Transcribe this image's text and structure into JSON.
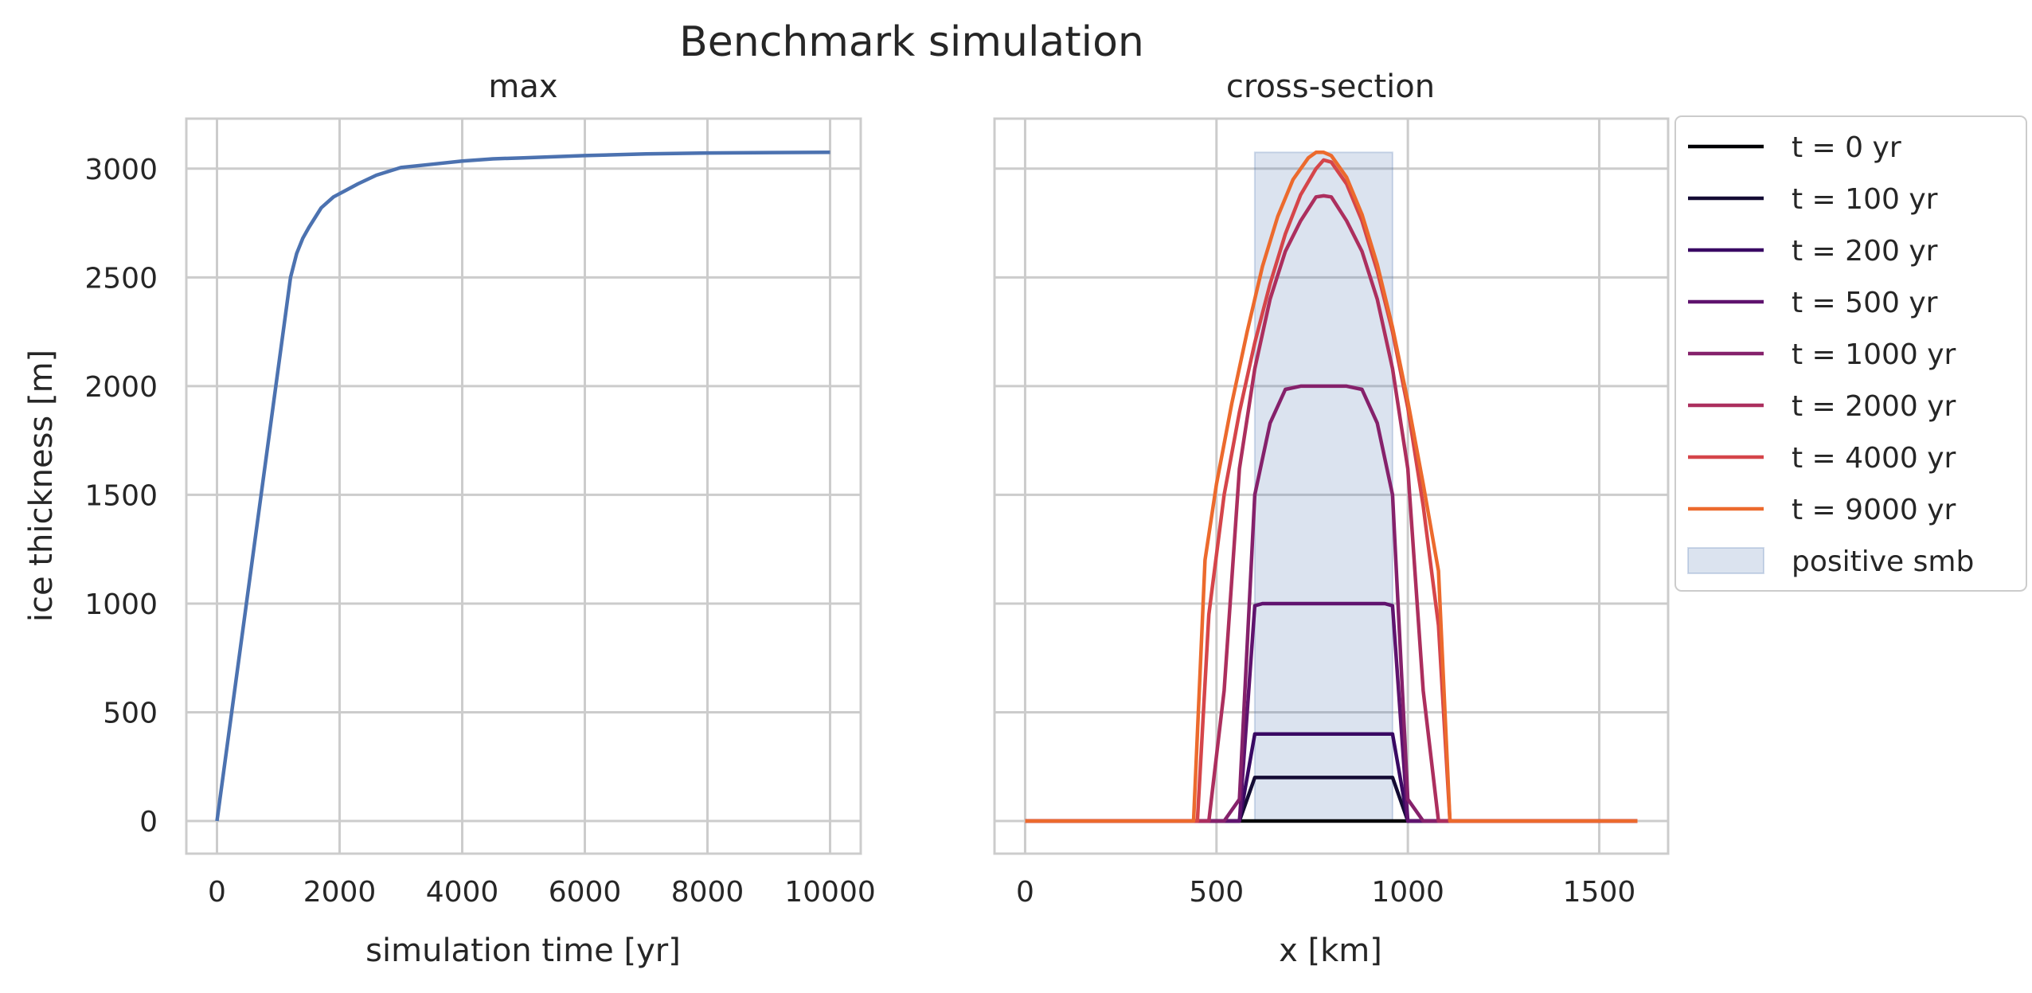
{
  "figure": {
    "title": "Benchmark simulation"
  },
  "chart_data": [
    {
      "type": "line",
      "title": "max",
      "xlabel": "simulation time [yr]",
      "ylabel": "ice thickness [m]",
      "xlim": [
        -500,
        10500
      ],
      "ylim": [
        -150,
        3230
      ],
      "xticks": [
        0,
        2000,
        4000,
        6000,
        8000,
        10000
      ],
      "yticks": [
        0,
        500,
        1000,
        1500,
        2000,
        2500,
        3000
      ],
      "grid": true,
      "series": [
        {
          "color": "#4c72b0",
          "x": [
            0,
            1200,
            1300,
            1400,
            1500,
            1700,
            1900,
            2100,
            2300,
            2600,
            3000,
            3500,
            4000,
            4500,
            5000,
            6000,
            7000,
            8000,
            9000,
            10000
          ],
          "y": [
            0,
            2500,
            2610,
            2680,
            2730,
            2820,
            2870,
            2900,
            2930,
            2970,
            3005,
            3020,
            3035,
            3045,
            3050,
            3060,
            3068,
            3072,
            3074,
            3075
          ]
        }
      ]
    },
    {
      "type": "line",
      "title": "cross-section",
      "xlabel": "x [km]",
      "ylabel": "",
      "xlim": [
        -80,
        1680
      ],
      "ylim": [
        -150,
        3230
      ],
      "xticks": [
        0,
        500,
        1000,
        1500
      ],
      "yticks": [
        0,
        500,
        1000,
        1500,
        2000,
        2500,
        3000
      ],
      "grid": true,
      "legend_placement": "outside upper right",
      "shaded_region": {
        "name": "positive smb",
        "x": [
          600,
          960
        ],
        "y": [
          0,
          3075
        ],
        "color": "#4c72b0"
      },
      "series": [
        {
          "name": "t = 0 yr",
          "color": "#000004",
          "x": [
            0,
            1600
          ],
          "y": [
            0,
            0
          ]
        },
        {
          "name": "t = 100 yr",
          "color": "#140b34",
          "x": [
            0,
            560,
            600,
            640,
            960,
            1000,
            1600
          ],
          "y": [
            0,
            0,
            200,
            200,
            200,
            0,
            0
          ]
        },
        {
          "name": "t = 200 yr",
          "color": "#390963",
          "x": [
            0,
            560,
            600,
            640,
            960,
            1000,
            1600
          ],
          "y": [
            0,
            0,
            400,
            400,
            400,
            0,
            0
          ]
        },
        {
          "name": "t = 500 yr",
          "color": "#5f136e",
          "x": [
            0,
            560,
            600,
            620,
            680,
            720,
            800,
            880,
            940,
            960,
            1000,
            1600
          ],
          "y": [
            0,
            0,
            990,
            1000,
            1000,
            1000,
            1000,
            1000,
            1000,
            990,
            0,
            0
          ]
        },
        {
          "name": "t = 1000 yr",
          "color": "#85216b",
          "x": [
            0,
            520,
            560,
            600,
            640,
            680,
            720,
            760,
            800,
            840,
            880,
            920,
            960,
            1000,
            1040,
            1600
          ],
          "y": [
            0,
            0,
            100,
            1500,
            1830,
            1985,
            2000,
            2000,
            2000,
            2000,
            1985,
            1830,
            1500,
            100,
            0,
            0
          ]
        },
        {
          "name": "t = 2000 yr",
          "color": "#ac2f5e",
          "x": [
            0,
            480,
            520,
            560,
            600,
            640,
            680,
            720,
            760,
            780,
            800,
            840,
            880,
            920,
            960,
            1000,
            1040,
            1080,
            1600
          ],
          "y": [
            0,
            0,
            600,
            1620,
            2080,
            2400,
            2620,
            2760,
            2870,
            2875,
            2870,
            2760,
            2620,
            2400,
            2080,
            1620,
            600,
            0,
            0
          ]
        },
        {
          "name": "t = 4000 yr",
          "color": "#d5454a",
          "x": [
            0,
            450,
            480,
            520,
            560,
            600,
            640,
            680,
            720,
            760,
            780,
            800,
            840,
            880,
            920,
            960,
            1000,
            1040,
            1080,
            1110,
            1600
          ],
          "y": [
            0,
            0,
            950,
            1500,
            1880,
            2200,
            2470,
            2700,
            2880,
            3000,
            3040,
            3030,
            2930,
            2760,
            2530,
            2250,
            1900,
            1450,
            900,
            0,
            0
          ]
        },
        {
          "name": "t = 9000 yr",
          "color": "#ec6a2d",
          "x": [
            0,
            440,
            470,
            500,
            540,
            580,
            620,
            660,
            700,
            740,
            760,
            780,
            800,
            840,
            880,
            920,
            960,
            1000,
            1040,
            1080,
            1110,
            1600
          ],
          "y": [
            0,
            0,
            1200,
            1550,
            1920,
            2250,
            2550,
            2780,
            2950,
            3050,
            3075,
            3075,
            3060,
            2960,
            2790,
            2560,
            2270,
            1930,
            1550,
            1150,
            0,
            0
          ]
        }
      ]
    }
  ]
}
